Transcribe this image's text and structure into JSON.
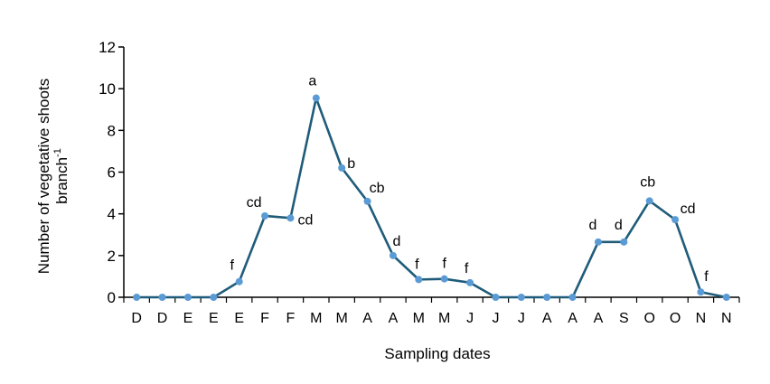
{
  "chart_data": {
    "type": "line",
    "xlabel": "Sampling dates",
    "ylabel_line1": "Number of vegetative shoots",
    "ylabel_line2_base": "branch",
    "ylabel_line2_sup": "-1",
    "ylim": [
      0,
      12
    ],
    "yticks": [
      "0",
      "2",
      "4",
      "6",
      "8",
      "10",
      "12"
    ],
    "ytick_values": [
      0,
      2,
      4,
      6,
      8,
      10,
      12
    ],
    "categories": [
      "D",
      "D",
      "E",
      "E",
      "E",
      "F",
      "F",
      "M",
      "M",
      "A",
      "A",
      "M",
      "M",
      "J",
      "J",
      "J",
      "A",
      "A",
      "A",
      "S",
      "O",
      "O",
      "N",
      "N"
    ],
    "series": [
      {
        "values": [
          0,
          0,
          0,
          0,
          0.75,
          3.9,
          3.8,
          9.55,
          6.2,
          4.6,
          2.0,
          0.85,
          0.88,
          0.7,
          0,
          0,
          0,
          0,
          2.65,
          2.65,
          4.62,
          3.72,
          0.25,
          0
        ],
        "labels": [
          "",
          "",
          "",
          "",
          "f",
          "cd",
          "cd",
          "a",
          "b",
          "cb",
          "d",
          "f",
          "f",
          "f",
          "",
          "",
          "",
          "",
          "d",
          "d",
          "cb",
          "cd",
          "f",
          ""
        ]
      }
    ],
    "line_color": "#1f5c7a",
    "marker_color": "#5b9bd5",
    "grid": false
  }
}
